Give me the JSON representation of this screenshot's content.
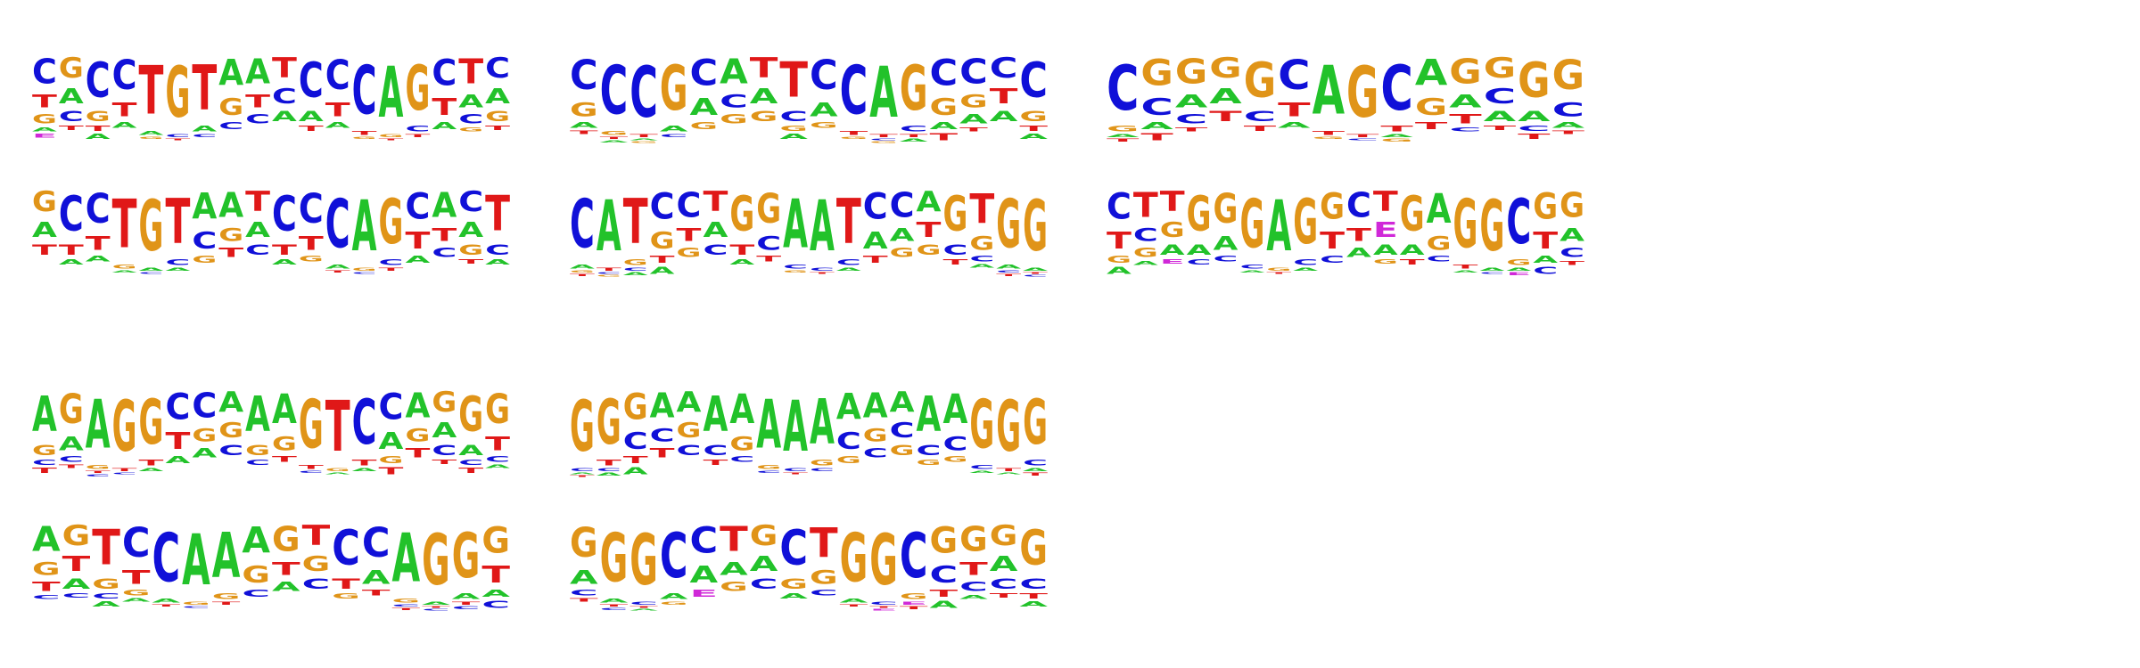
{
  "colors": {
    "A": "#22c22a",
    "C": "#1010d8",
    "G": "#e09418",
    "T": "#e01818",
    "E": "#d028d8"
  },
  "logos": [
    {
      "name": "logo-r1-c1",
      "consensus": "CGCCTGTAATCCCAGCTC",
      "columns": [
        [
          "C",
          "T",
          "G",
          "A",
          "E"
        ],
        [
          "G",
          "A",
          "C",
          "T"
        ],
        [
          "C",
          "G",
          "T",
          "A"
        ],
        [
          "C",
          "T",
          "A"
        ],
        [
          "T",
          "A",
          "G"
        ],
        [
          "G",
          "C",
          "T"
        ],
        [
          "T",
          "A",
          "C"
        ],
        [
          "A",
          "G",
          "C"
        ],
        [
          "A",
          "T",
          "C"
        ],
        [
          "T",
          "C",
          "A"
        ],
        [
          "C",
          "A",
          "T"
        ],
        [
          "C",
          "T",
          "A"
        ],
        [
          "C",
          "T",
          "G"
        ],
        [
          "A",
          "G",
          "T"
        ],
        [
          "G",
          "C",
          "T"
        ],
        [
          "C",
          "T",
          "A"
        ],
        [
          "T",
          "A",
          "C",
          "G"
        ],
        [
          "C",
          "A",
          "G",
          "T"
        ]
      ]
    },
    {
      "name": "logo-r1-c2",
      "consensus": "CCCGCATTCCAGCCCC",
      "columns": [
        [
          "C",
          "G",
          "A",
          "T"
        ],
        [
          "C",
          "G",
          "T",
          "A"
        ],
        [
          "C",
          "T",
          "A",
          "G"
        ],
        [
          "G",
          "A",
          "C"
        ],
        [
          "C",
          "A",
          "G"
        ],
        [
          "A",
          "C",
          "G"
        ],
        [
          "T",
          "A",
          "G"
        ],
        [
          "T",
          "C",
          "G",
          "A"
        ],
        [
          "C",
          "A",
          "G"
        ],
        [
          "C",
          "T",
          "G"
        ],
        [
          "A",
          "T",
          "C",
          "G"
        ],
        [
          "G",
          "C",
          "T",
          "A"
        ],
        [
          "C",
          "G",
          "A",
          "T"
        ],
        [
          "C",
          "G",
          "A",
          "T"
        ],
        [
          "C",
          "T",
          "A"
        ],
        [
          "C",
          "G",
          "T",
          "A"
        ]
      ]
    },
    {
      "name": "logo-r1-c3",
      "consensus": "CGGGGCAGCAGGGG",
      "columns": [
        [
          "C",
          "G",
          "A",
          "T"
        ],
        [
          "G",
          "C",
          "A",
          "T"
        ],
        [
          "G",
          "A",
          "C",
          "T"
        ],
        [
          "G",
          "A",
          "T"
        ],
        [
          "G",
          "C",
          "T"
        ],
        [
          "C",
          "T",
          "A"
        ],
        [
          "A",
          "T",
          "G"
        ],
        [
          "G",
          "T",
          "C"
        ],
        [
          "C",
          "T",
          "A",
          "G"
        ],
        [
          "A",
          "G",
          "T"
        ],
        [
          "G",
          "A",
          "T",
          "C"
        ],
        [
          "G",
          "C",
          "A",
          "T"
        ],
        [
          "G",
          "A",
          "C",
          "T"
        ],
        [
          "G",
          "C",
          "A",
          "T"
        ]
      ]
    },
    {
      "name": "logo-r2-c1",
      "consensus": "GCCTGTAATCCCAGCACT",
      "columns": [
        [
          "G",
          "A",
          "T"
        ],
        [
          "C",
          "T",
          "A"
        ],
        [
          "C",
          "T",
          "A"
        ],
        [
          "T",
          "G",
          "A"
        ],
        [
          "G",
          "A",
          "C"
        ],
        [
          "T",
          "C",
          "A"
        ],
        [
          "A",
          "C",
          "G"
        ],
        [
          "A",
          "G",
          "T"
        ],
        [
          "T",
          "A",
          "C"
        ],
        [
          "C",
          "T",
          "A"
        ],
        [
          "C",
          "T",
          "G"
        ],
        [
          "C",
          "A",
          "T"
        ],
        [
          "A",
          "G",
          "C"
        ],
        [
          "G",
          "C",
          "T"
        ],
        [
          "C",
          "T",
          "A"
        ],
        [
          "A",
          "T",
          "C"
        ],
        [
          "C",
          "A",
          "G",
          "T"
        ],
        [
          "T",
          "C",
          "A"
        ]
      ]
    },
    {
      "name": "logo-r2-c2",
      "consensus": "CATCCTGGAATCCAGTGG",
      "columns": [
        [
          "C",
          "A",
          "G",
          "T"
        ],
        [
          "A",
          "T",
          "C",
          "G"
        ],
        [
          "T",
          "G",
          "C",
          "A"
        ],
        [
          "C",
          "G",
          "T",
          "A"
        ],
        [
          "C",
          "T",
          "G"
        ],
        [
          "T",
          "A",
          "C"
        ],
        [
          "G",
          "T",
          "A"
        ],
        [
          "G",
          "C",
          "T"
        ],
        [
          "A",
          "C",
          "G"
        ],
        [
          "A",
          "C",
          "T"
        ],
        [
          "T",
          "C",
          "A"
        ],
        [
          "C",
          "A",
          "T"
        ],
        [
          "C",
          "A",
          "G"
        ],
        [
          "A",
          "T",
          "G"
        ],
        [
          "G",
          "C",
          "T"
        ],
        [
          "T",
          "G",
          "C",
          "A"
        ],
        [
          "G",
          "A",
          "C",
          "T"
        ],
        [
          "G",
          "A",
          "T",
          "C"
        ]
      ]
    },
    {
      "name": "logo-r2-c3",
      "consensus": "CTTGGGAGGCTGAGGCGG",
      "columns": [
        [
          "C",
          "T",
          "G",
          "A"
        ],
        [
          "T",
          "C",
          "G",
          "A"
        ],
        [
          "T",
          "G",
          "A",
          "E"
        ],
        [
          "G",
          "A",
          "C"
        ],
        [
          "G",
          "A",
          "C"
        ],
        [
          "G",
          "C",
          "A"
        ],
        [
          "A",
          "G",
          "T"
        ],
        [
          "G",
          "C",
          "A"
        ],
        [
          "G",
          "T",
          "C"
        ],
        [
          "C",
          "T",
          "A"
        ],
        [
          "T",
          "E",
          "A",
          "G"
        ],
        [
          "G",
          "A",
          "T"
        ],
        [
          "A",
          "G",
          "C"
        ],
        [
          "G",
          "T",
          "A"
        ],
        [
          "G",
          "A",
          "C"
        ],
        [
          "C",
          "G",
          "A",
          "E"
        ],
        [
          "G",
          "T",
          "A",
          "C"
        ],
        [
          "G",
          "A",
          "C",
          "T"
        ]
      ]
    },
    {
      "name": "logo-r3-c1",
      "consensus": "AGAGGCCAAAGTCCAGGG",
      "columns": [
        [
          "A",
          "G",
          "C",
          "T"
        ],
        [
          "G",
          "A",
          "C",
          "T"
        ],
        [
          "A",
          "G",
          "T",
          "C"
        ],
        [
          "G",
          "T",
          "C"
        ],
        [
          "G",
          "T",
          "A"
        ],
        [
          "C",
          "T",
          "A"
        ],
        [
          "C",
          "G",
          "A"
        ],
        [
          "A",
          "G",
          "C"
        ],
        [
          "A",
          "G",
          "C"
        ],
        [
          "A",
          "G",
          "T"
        ],
        [
          "G",
          "T",
          "C"
        ],
        [
          "T",
          "G",
          "A"
        ],
        [
          "C",
          "T",
          "A"
        ],
        [
          "C",
          "A",
          "G",
          "T"
        ],
        [
          "A",
          "G",
          "T"
        ],
        [
          "G",
          "A",
          "C",
          "T"
        ],
        [
          "G",
          "A",
          "C",
          "T"
        ],
        [
          "G",
          "T",
          "C",
          "A"
        ]
      ]
    },
    {
      "name": "logo-r3-c2",
      "consensus": "GGGAAAAAAAAAAAAGGG",
      "columns": [
        [
          "G",
          "C",
          "A",
          "T"
        ],
        [
          "G",
          "T",
          "C",
          "A"
        ],
        [
          "G",
          "C",
          "T",
          "A"
        ],
        [
          "A",
          "C",
          "T"
        ],
        [
          "A",
          "G",
          "C"
        ],
        [
          "A",
          "C",
          "T"
        ],
        [
          "A",
          "G",
          "C"
        ],
        [
          "A",
          "G",
          "C"
        ],
        [
          "A",
          "C",
          "T"
        ],
        [
          "A",
          "G",
          "C"
        ],
        [
          "A",
          "C",
          "G"
        ],
        [
          "A",
          "G",
          "C"
        ],
        [
          "A",
          "C",
          "G"
        ],
        [
          "A",
          "C",
          "G"
        ],
        [
          "A",
          "C",
          "G"
        ],
        [
          "G",
          "C",
          "A"
        ],
        [
          "G",
          "T",
          "A"
        ],
        [
          "G",
          "C",
          "A",
          "T"
        ]
      ]
    },
    {
      "name": "logo-r4-c1",
      "consensus": "AGTCCAAAGTCCAGGG",
      "columns": [
        [
          "A",
          "G",
          "T",
          "C"
        ],
        [
          "G",
          "T",
          "A",
          "C"
        ],
        [
          "T",
          "G",
          "C",
          "A"
        ],
        [
          "C",
          "T",
          "G",
          "A"
        ],
        [
          "C",
          "A",
          "T"
        ],
        [
          "A",
          "G",
          "C"
        ],
        [
          "A",
          "G",
          "T"
        ],
        [
          "A",
          "G",
          "C"
        ],
        [
          "G",
          "T",
          "A"
        ],
        [
          "T",
          "G",
          "C"
        ],
        [
          "C",
          "T",
          "G"
        ],
        [
          "C",
          "A",
          "T"
        ],
        [
          "A",
          "G",
          "C",
          "T"
        ],
        [
          "G",
          "A",
          "T",
          "C"
        ],
        [
          "G",
          "A",
          "T",
          "C"
        ],
        [
          "G",
          "T",
          "A",
          "C"
        ]
      ]
    },
    {
      "name": "logo-r4-c2",
      "consensus": "GGGCCTGCTGGCGGGG",
      "columns": [
        [
          "G",
          "A",
          "C",
          "T"
        ],
        [
          "G",
          "A",
          "T",
          "C"
        ],
        [
          "G",
          "C",
          "T",
          "A"
        ],
        [
          "C",
          "A",
          "G"
        ],
        [
          "C",
          "A",
          "E"
        ],
        [
          "T",
          "A",
          "G"
        ],
        [
          "G",
          "A",
          "C"
        ],
        [
          "C",
          "G",
          "A"
        ],
        [
          "T",
          "G",
          "C"
        ],
        [
          "G",
          "A",
          "T"
        ],
        [
          "G",
          "C",
          "T",
          "E"
        ],
        [
          "C",
          "G",
          "E",
          "T"
        ],
        [
          "G",
          "C",
          "T",
          "A"
        ],
        [
          "G",
          "T",
          "C",
          "A"
        ],
        [
          "G",
          "A",
          "C",
          "T"
        ],
        [
          "G",
          "C",
          "T",
          "A"
        ]
      ]
    }
  ]
}
